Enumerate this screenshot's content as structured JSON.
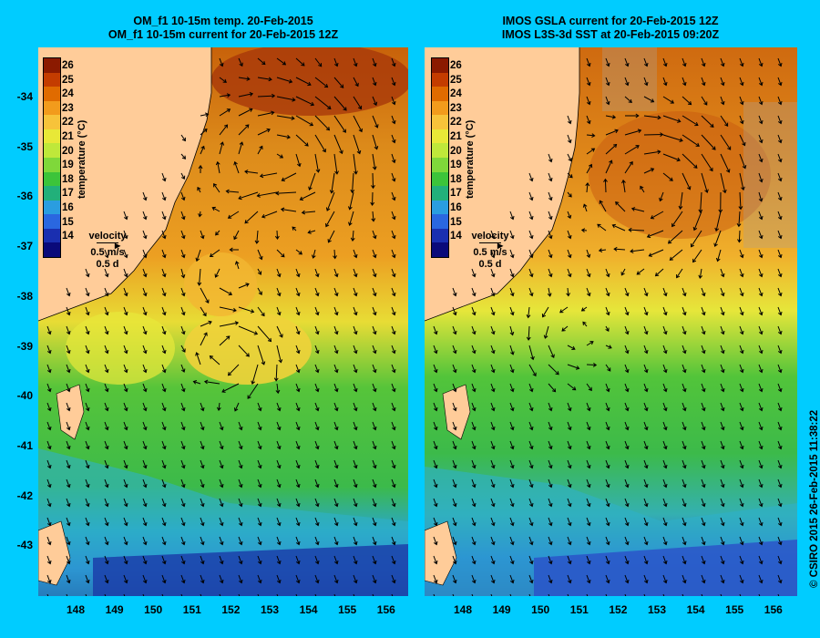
{
  "left_panel": {
    "title_line1": "OM_f1 10-15m temp. 20-Feb-2015",
    "title_line2": "OM_f1 10-15m current for 20-Feb-2015 12Z"
  },
  "right_panel": {
    "title_line1": "IMOS GSLA current for 20-Feb-2015 12Z",
    "title_line2": "IMOS L3S-3d SST at 20-Feb-2015 09:20Z"
  },
  "colorbar": {
    "title": "temperature (°C)",
    "ticks": [
      "26",
      "25",
      "24",
      "23",
      "22",
      "21",
      "20",
      "19",
      "18",
      "17",
      "16",
      "15",
      "14"
    ],
    "colors": [
      "#8b1a00",
      "#c43c00",
      "#e06b00",
      "#f29b1c",
      "#f7c33a",
      "#e8e837",
      "#bfe83a",
      "#7fd83a",
      "#3cc43a",
      "#22b07a",
      "#2a9de0",
      "#2a67e0",
      "#1a2fb0",
      "#0a0a7a"
    ]
  },
  "velocity_legend": {
    "label": "velocity",
    "speed": "0.5 m/s",
    "duration": "0.5 d"
  },
  "axes": {
    "y_ticks": [
      "-34",
      "-35",
      "-36",
      "-37",
      "-38",
      "-39",
      "-40",
      "-41",
      "-42",
      "-43"
    ],
    "x_ticks": [
      "148",
      "149",
      "150",
      "151",
      "152",
      "153",
      "154",
      "155",
      "156"
    ]
  },
  "credit": "© CSIRO 2015   26-Feb-2015 11:38:22"
}
